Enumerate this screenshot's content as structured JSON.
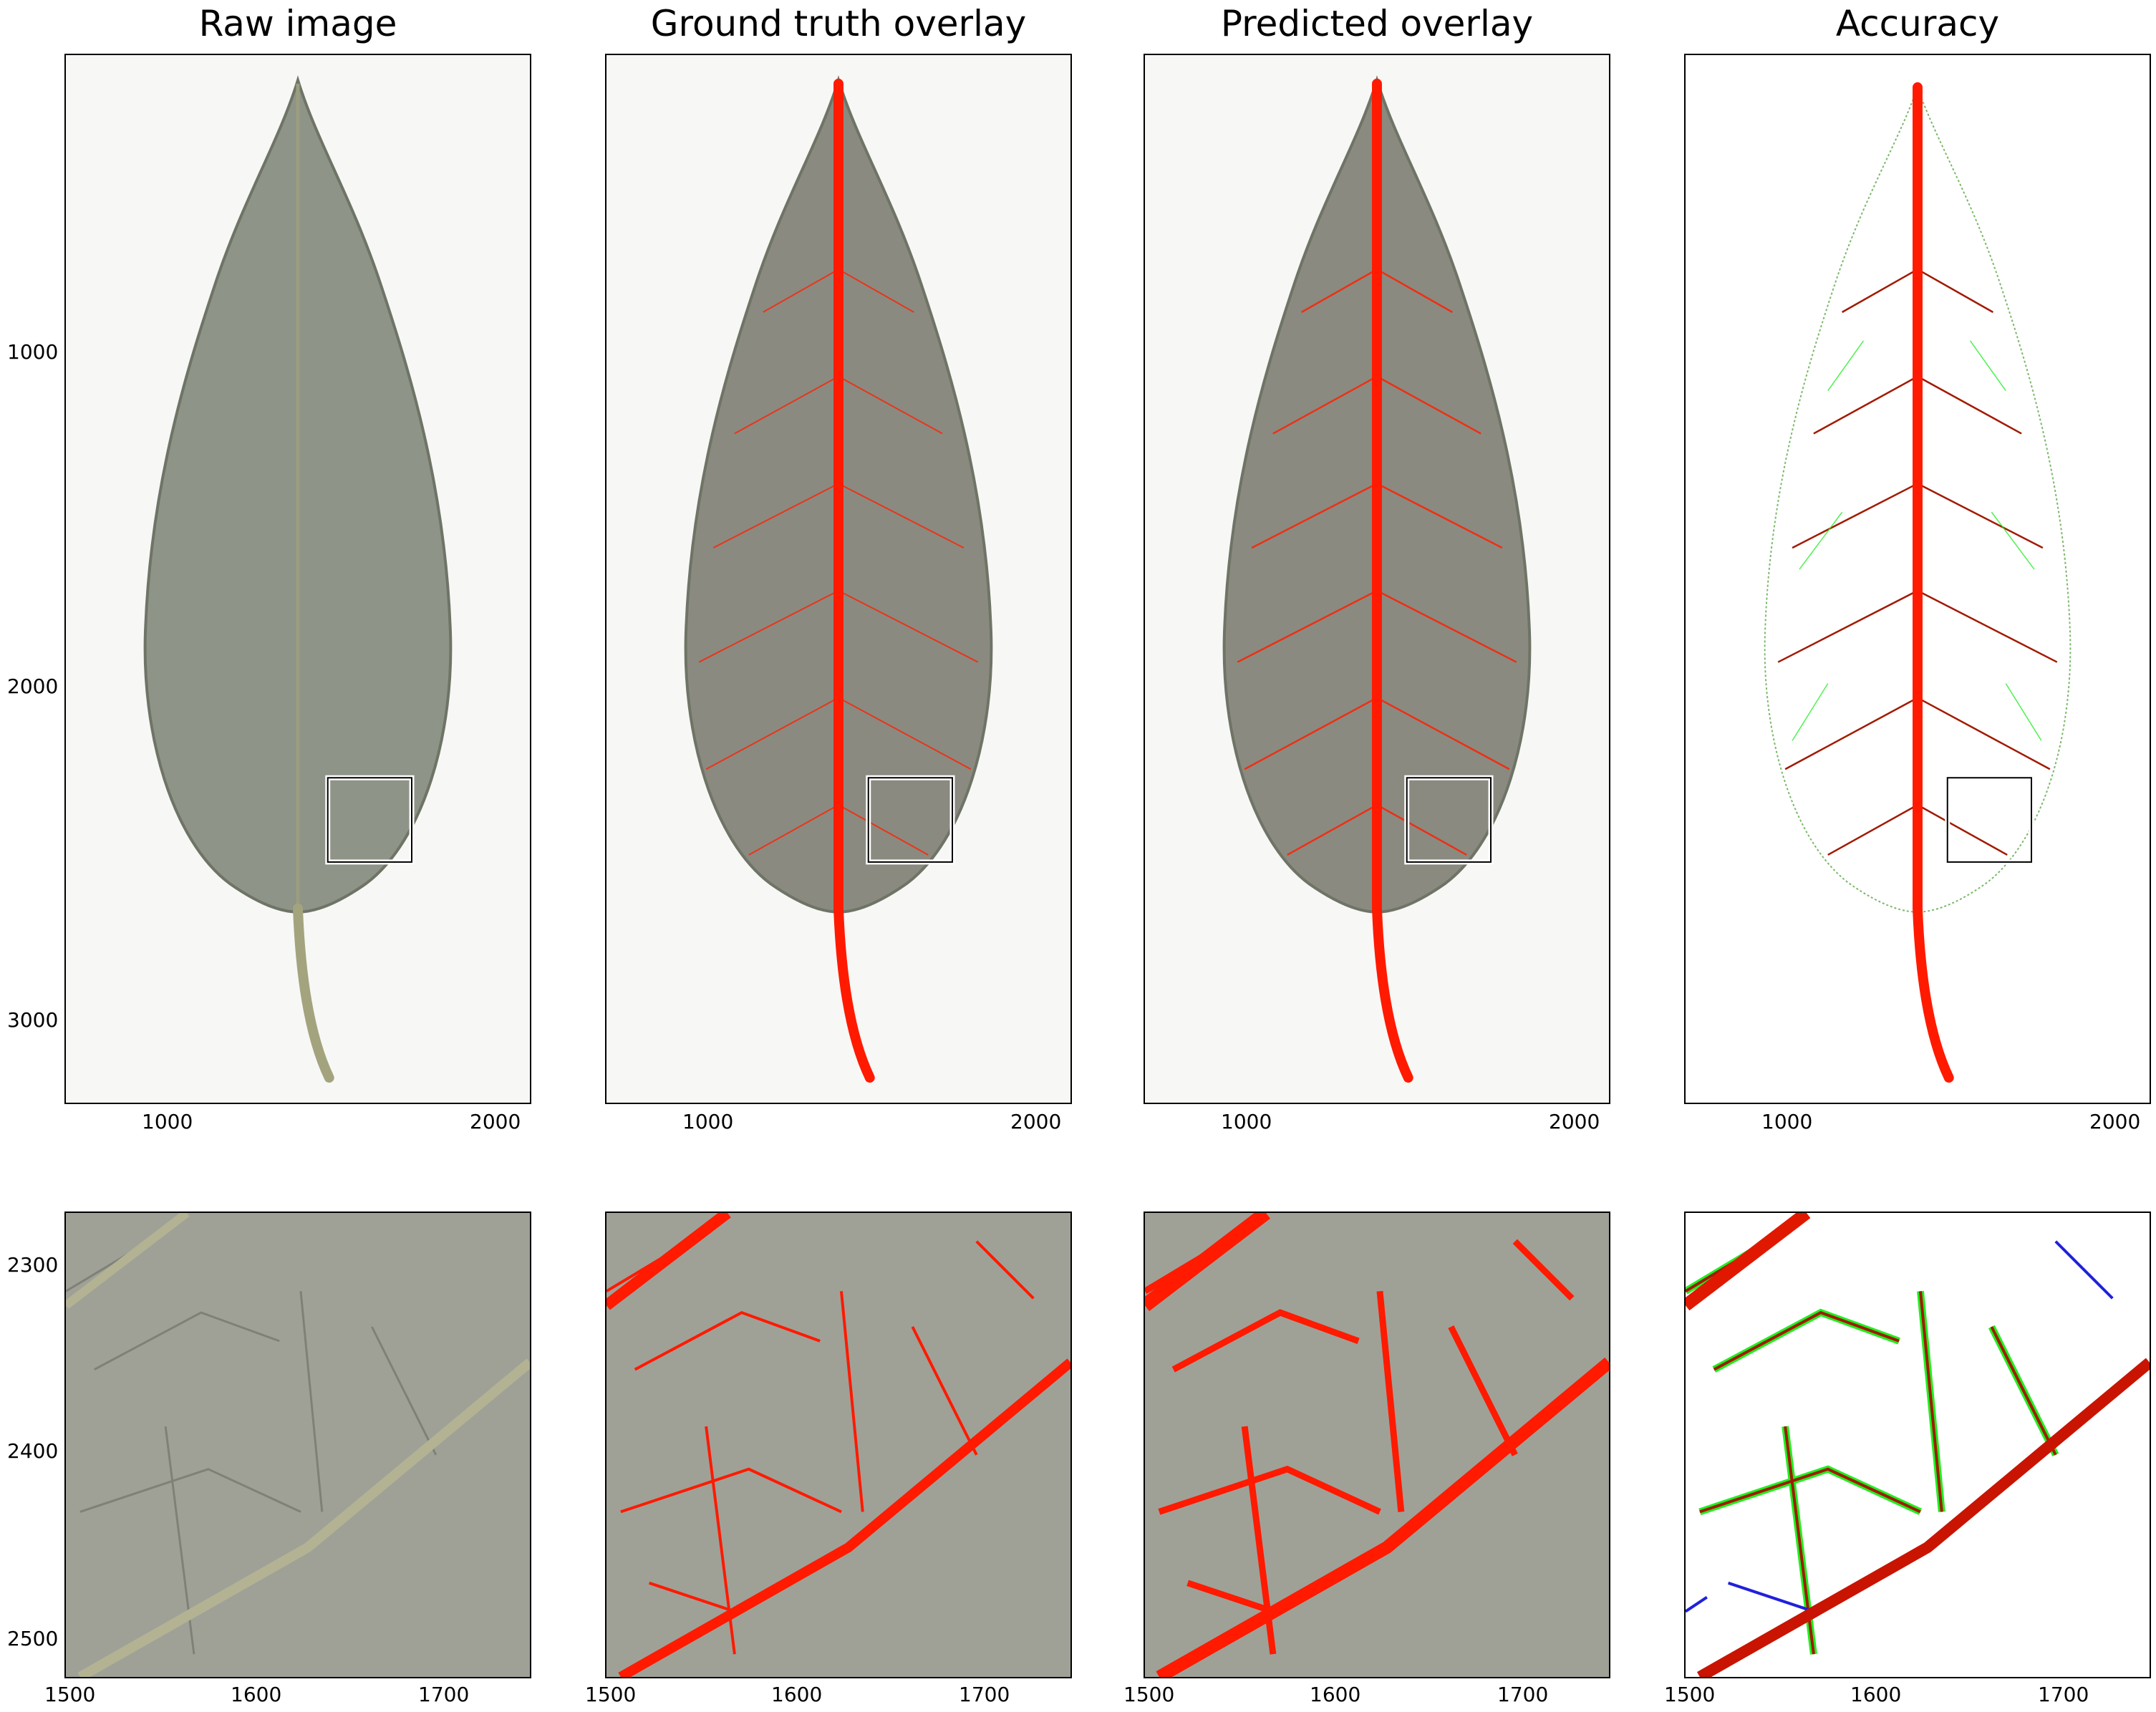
{
  "columns": [
    {
      "key": "raw",
      "title": "Raw image"
    },
    {
      "key": "gt",
      "title": "Ground truth overlay"
    },
    {
      "key": "pred",
      "title": "Predicted overlay"
    },
    {
      "key": "acc",
      "title": "Accuracy"
    }
  ],
  "top_axes": {
    "x_ticks": [
      "1000",
      "2000"
    ],
    "y_ticks": [
      "1000",
      "2000",
      "3000"
    ]
  },
  "bottom_axes": {
    "x_ticks": [
      "1500",
      "1600",
      "1700"
    ],
    "y_ticks": [
      "2300",
      "2400",
      "2500"
    ]
  },
  "colors": {
    "leaf": "#8c9384",
    "vein_red": "#ff1a00",
    "false_positive": "#22ee22",
    "false_negative": "#2020dd",
    "true_positive": "#a11a00",
    "background": "#f4f4f2",
    "zoom_box": "#ffffff"
  }
}
